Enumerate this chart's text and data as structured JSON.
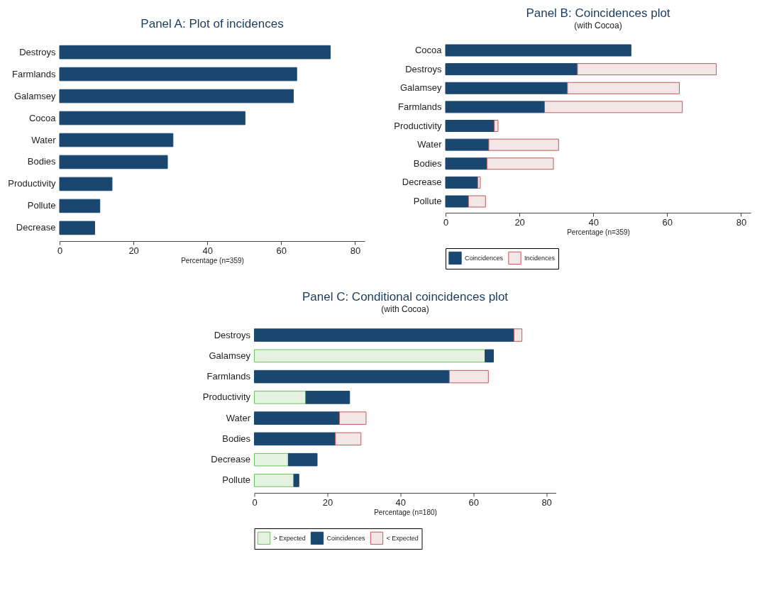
{
  "chart_data": [
    {
      "type": "bar",
      "orientation": "horizontal",
      "title": "Panel A: Plot of incidences",
      "xlabel": "Percentage (n=359)",
      "categories": [
        "Destroys",
        "Farmlands",
        "Galamsey",
        "Cocoa",
        "Water",
        "Bodies",
        "Productivity",
        "Pollute",
        "Decrease"
      ],
      "series": [
        {
          "color": "#1a476f",
          "values": [
            73.3,
            64.2,
            63.3,
            50.2,
            30.7,
            29.2,
            14.2,
            10.9,
            9.5
          ]
        }
      ],
      "xlim": [
        0,
        82.6
      ],
      "xticks": [
        0,
        20,
        40,
        60,
        80
      ],
      "grid": false,
      "legend": false
    },
    {
      "type": "bar",
      "orientation": "horizontal",
      "stacked": true,
      "title": "Panel B: Coincidences plot",
      "subtitle": "(with Cocoa)",
      "xlabel": "Percentage (n=359)",
      "categories": [
        "Cocoa",
        "Destroys",
        "Galamsey",
        "Farmlands",
        "Productivity",
        "Water",
        "Bodies",
        "Decrease",
        "Pollute"
      ],
      "series": [
        {
          "name": "Coincidences",
          "color": "#1a476f",
          "values": [
            50.2,
            35.7,
            33.0,
            26.8,
            13.2,
            11.7,
            11.2,
            8.7,
            6.2
          ]
        },
        {
          "name": "Incidences",
          "color": "#f2e6e6",
          "values": [
            0,
            37.6,
            30.3,
            37.3,
            1.0,
            18.9,
            18.0,
            0.7,
            4.6
          ]
        }
      ],
      "xlim": [
        0,
        82.6
      ],
      "xticks": [
        0,
        20,
        40,
        60,
        80
      ],
      "grid": false,
      "legend": "bottom"
    },
    {
      "type": "bar",
      "orientation": "horizontal",
      "stacked": true,
      "title": "Panel C: Conditional coincidences plot",
      "subtitle": "(with Cocoa)",
      "xlabel": "Percentage (n=180)",
      "categories": [
        "Destroys",
        "Galamsey",
        "Farmlands",
        "Productivity",
        "Water",
        "Bodies",
        "Decrease",
        "Pollute"
      ],
      "series": [
        {
          "name": "> Expected",
          "color": "#e5f2e2",
          "values": [
            0,
            63.2,
            0,
            14.1,
            0,
            0,
            9.3,
            10.8
          ]
        },
        {
          "name": "Coincidences",
          "color": "#1a476f",
          "values": [
            71.1,
            2.3,
            53.4,
            12.0,
            23.3,
            22.2,
            7.9,
            1.4
          ]
        },
        {
          "name": "< Expected",
          "color": "#f2e6e6",
          "values": [
            2.2,
            0,
            10.7,
            0,
            7.3,
            7.0,
            0,
            0
          ]
        }
      ],
      "xlim": [
        0,
        82.6
      ],
      "xticks": [
        0,
        20,
        40,
        60,
        80
      ],
      "grid": false,
      "legend": "bottom"
    }
  ]
}
